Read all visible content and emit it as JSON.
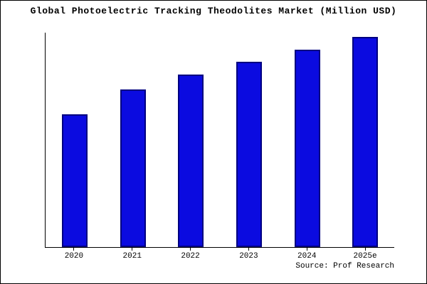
{
  "chart_data": {
    "type": "bar",
    "title": "Global Photoelectric Tracking Theodolites Market (Million USD)",
    "categories": [
      "2020",
      "2021",
      "2022",
      "2023",
      "2024",
      "2025e"
    ],
    "values": [
      63,
      75,
      82,
      88,
      94,
      100
    ],
    "xlabel": "",
    "ylabel": "",
    "ylim": [
      0,
      102
    ],
    "grid": false,
    "legend": "none",
    "bar_fill_color": "#0b0be0",
    "bar_border_color": "#000080"
  },
  "source": "Source: Prof Research"
}
